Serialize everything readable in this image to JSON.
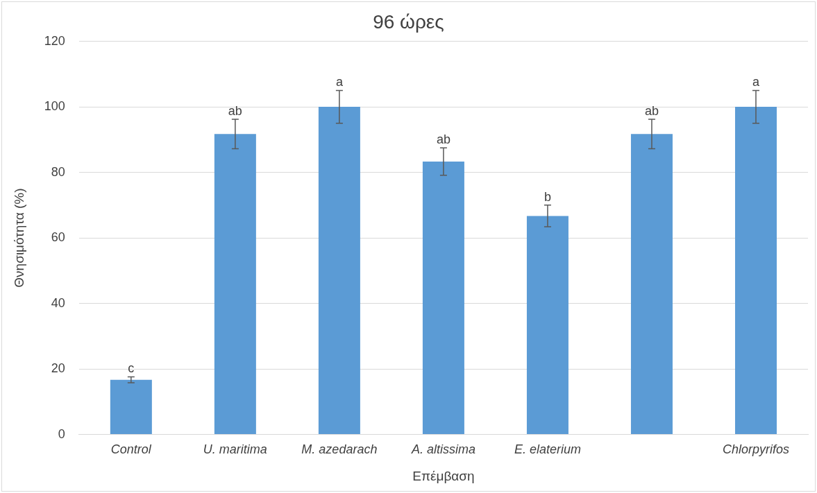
{
  "chart_data": {
    "type": "bar",
    "title": "96 ώρες",
    "xlabel": "Επέμβαση",
    "ylabel": "Θνησιμότητα (%)",
    "categories": [
      "Control",
      "U. maritima",
      "M. azedarach",
      "A. altissima",
      "E. elaterium",
      null,
      "Chlorpyrifos"
    ],
    "values": [
      16.7,
      91.7,
      100,
      83.3,
      66.7,
      91.7,
      100
    ],
    "errors": [
      0.9,
      4.5,
      5,
      4.2,
      3.3,
      4.5,
      5
    ],
    "value_labels": [
      "c",
      "ab",
      "a",
      "ab",
      "b",
      "ab",
      "a"
    ],
    "color": "#5b9bd5",
    "ylim": [
      0,
      120
    ],
    "yticks": [
      0,
      20,
      40,
      60,
      80,
      100,
      120
    ],
    "grid": "y",
    "legend": false
  }
}
